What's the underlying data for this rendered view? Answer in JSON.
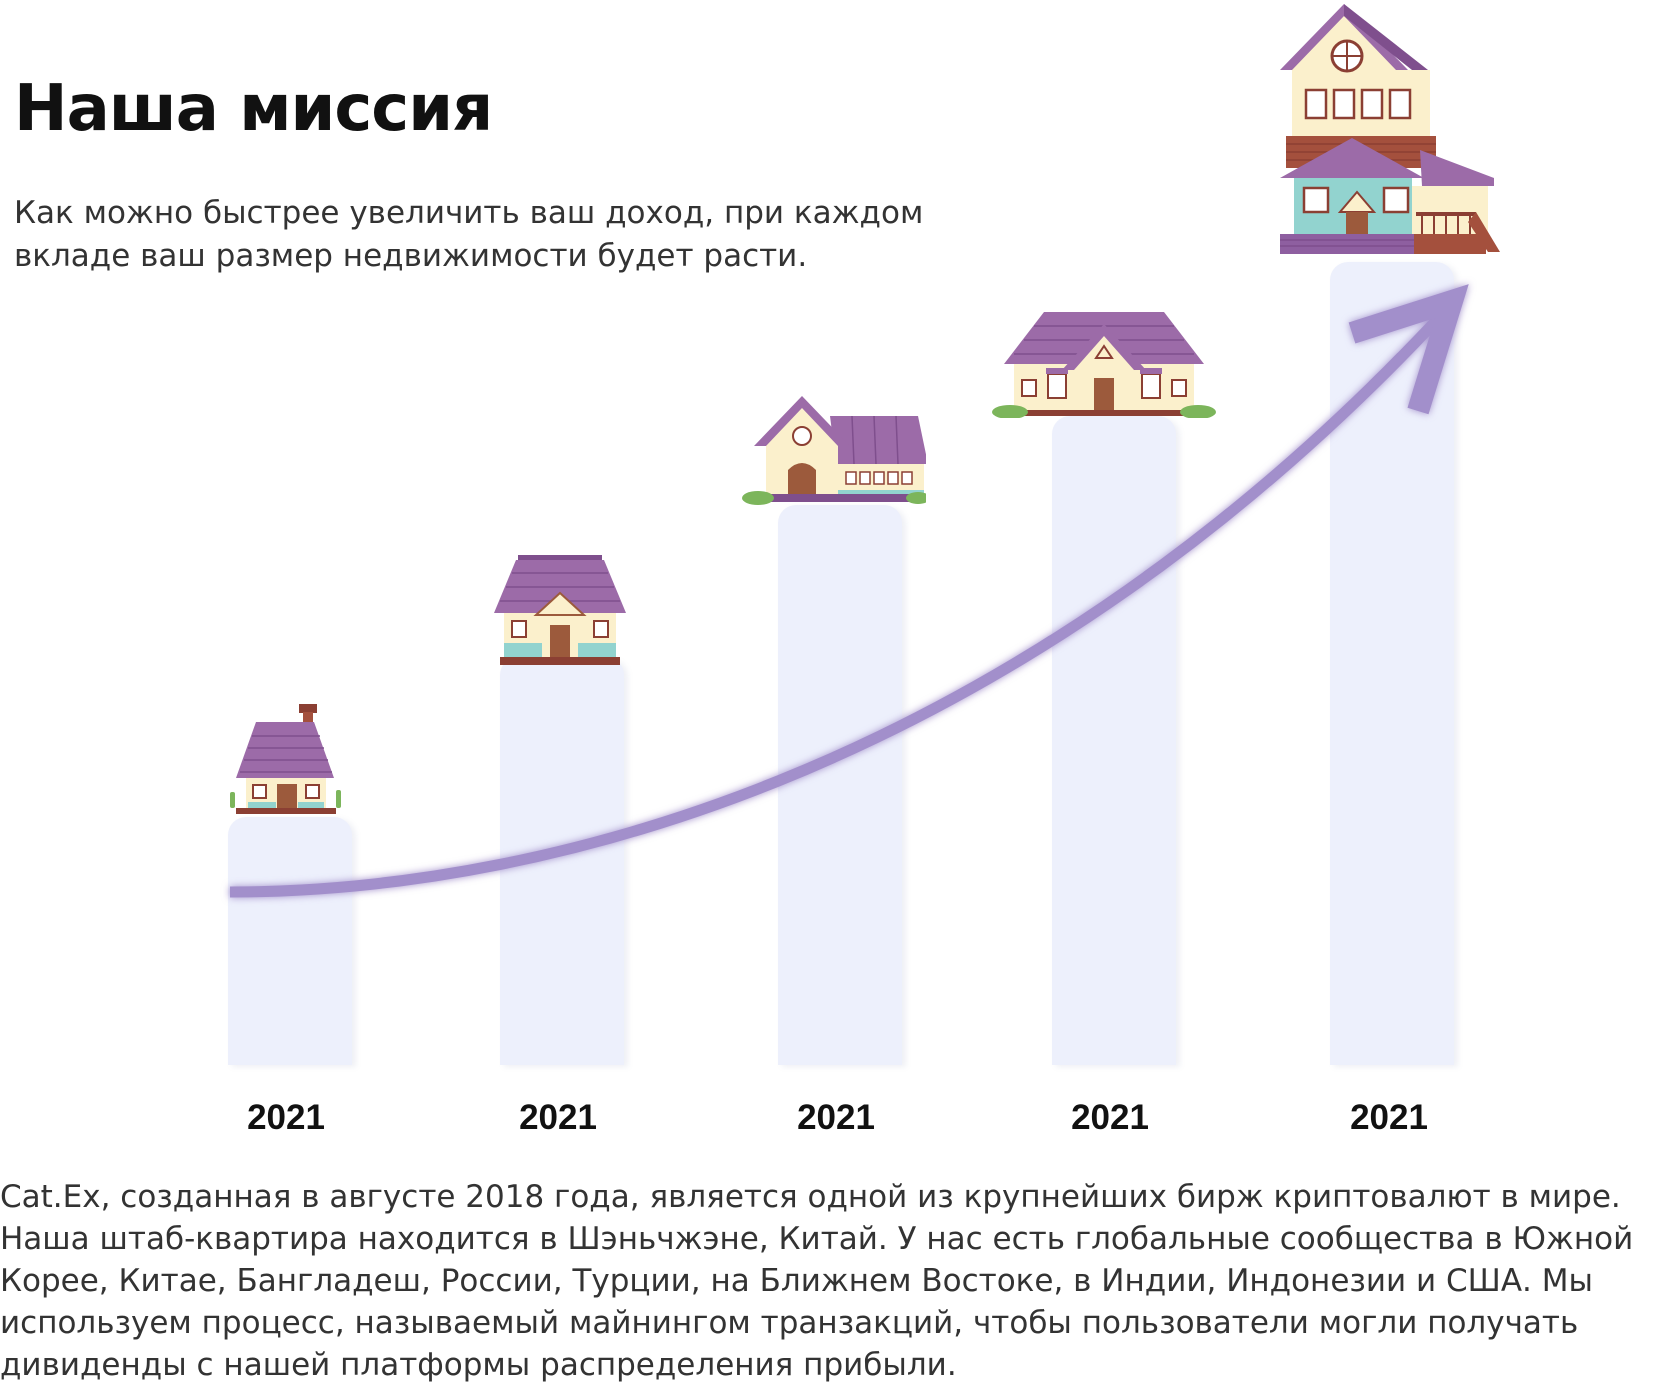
{
  "header": {
    "title": "Наша миссия",
    "subtitle": "Как можно быстрее увеличить ваш доход, при каждом вкладе ваш размер недвижимости будет расти."
  },
  "growth_steps": [
    {
      "year": "2021",
      "house_icon": "small-cottage-icon"
    },
    {
      "year": "2021",
      "house_icon": "pavilion-house-icon"
    },
    {
      "year": "2021",
      "house_icon": "gable-house-icon"
    },
    {
      "year": "2021",
      "house_icon": "wide-manor-icon"
    },
    {
      "year": "2021",
      "house_icon": "two-storey-villa-icon"
    }
  ],
  "arrow_icon": "growth-arrow-icon",
  "colors": {
    "bar": "#edf0fc",
    "arrow": "#a28fcb",
    "roof": "#9c6ba8",
    "wall": "#fbf0cc",
    "teal": "#92d3cf",
    "door": "#9c5a3c",
    "trim": "#8b3f33"
  },
  "description": "Cat.Ex, созданная в августе 2018 года, является одной из крупнейших бирж криптовалют в мире. Наша штаб-квартира находится в Шэньчжэне, Китай. У нас есть глобальные сообщества в Южной Корее, Китае, Бангладеш, России, Турции, на Ближнем Востоке, в Индии, Индонезии и США. Мы используем процесс, называемый майнингом транзакций, чтобы пользователи могли получать дивиденды с нашей платформы распределения прибыли."
}
